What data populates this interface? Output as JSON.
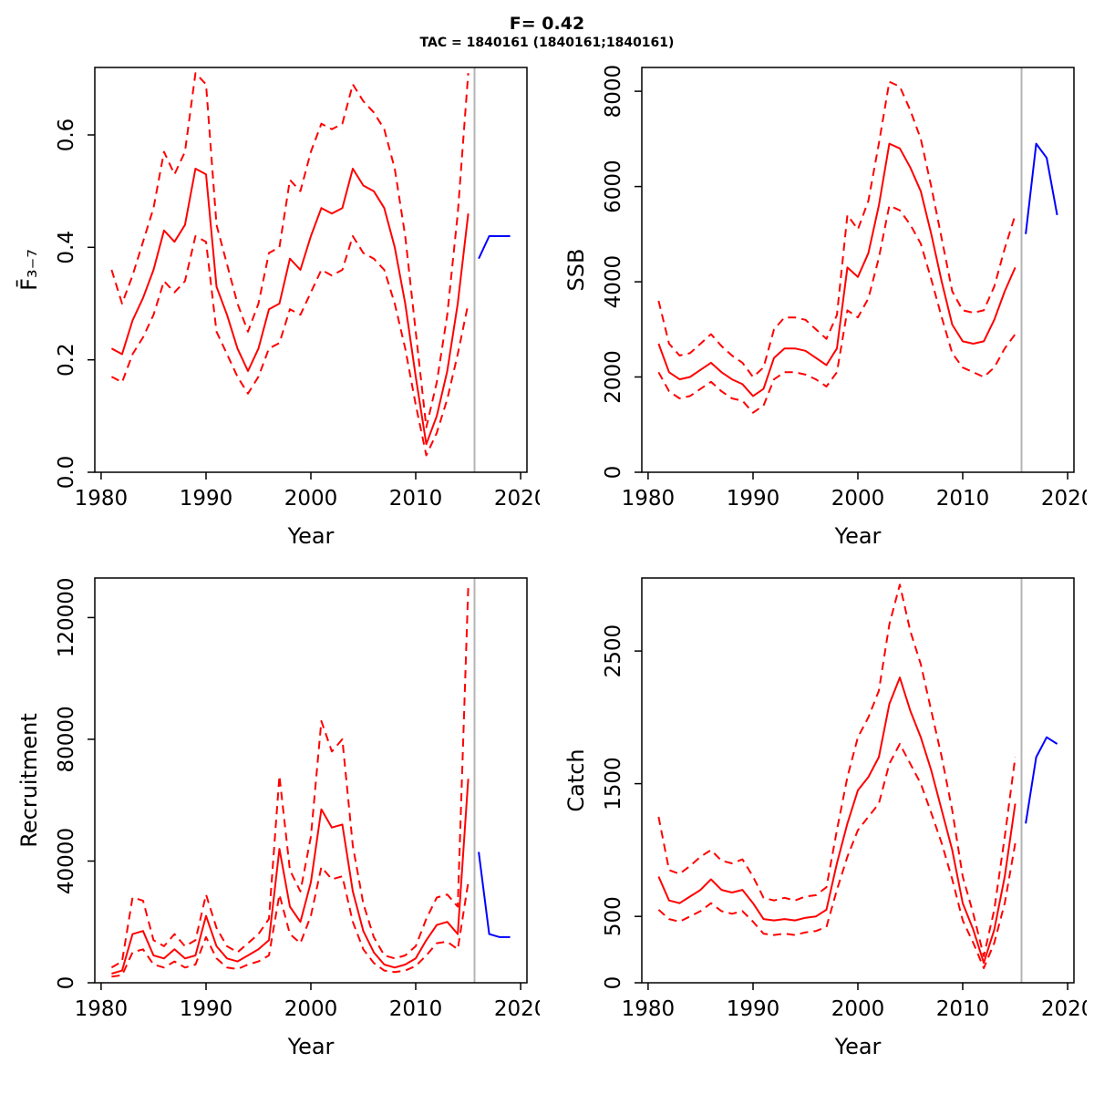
{
  "header": {
    "title": "F= 0.42",
    "subtitle": "TAC = 1840161 (1840161;1840161)"
  },
  "colors": {
    "history": "#ff0000",
    "confidence": "#ff0000",
    "forecast": "#0000ff",
    "divider": "#b4b4b4",
    "axis": "#000000"
  },
  "chart_data": [
    {
      "type": "line",
      "title": "",
      "ylabel": "F̄₃₋₇",
      "xlabel": "Year",
      "xlim": [
        1979.4,
        2020.6
      ],
      "ylim": [
        0,
        0.72
      ],
      "xticks": [
        1980,
        1990,
        2000,
        2010,
        2020
      ],
      "xtick_labels": [
        "1980",
        "1990",
        "2000",
        "2010",
        "2020"
      ],
      "yticks": [
        0,
        0.2,
        0.4,
        0.6
      ],
      "ytick_labels": [
        "0.0",
        "0.2",
        "0.4",
        "0.6"
      ],
      "divider_x": 2015.6,
      "x_hist": [
        1981,
        1982,
        1983,
        1984,
        1985,
        1986,
        1987,
        1988,
        1989,
        1990,
        1991,
        1992,
        1993,
        1994,
        1995,
        1996,
        1997,
        1998,
        1999,
        2000,
        2001,
        2002,
        2003,
        2004,
        2005,
        2006,
        2007,
        2008,
        2009,
        2010,
        2011,
        2012,
        2013,
        2014,
        2015
      ],
      "x_forecast": [
        2016,
        2017,
        2018,
        2019
      ],
      "series": [
        {
          "name": "lower-ci",
          "style": "dashed",
          "color_key": "confidence",
          "x_key": "x_hist",
          "values": [
            0.17,
            0.16,
            0.21,
            0.24,
            0.28,
            0.34,
            0.32,
            0.34,
            0.42,
            0.41,
            0.25,
            0.21,
            0.17,
            0.14,
            0.17,
            0.22,
            0.23,
            0.29,
            0.28,
            0.32,
            0.36,
            0.35,
            0.36,
            0.42,
            0.39,
            0.38,
            0.36,
            0.3,
            0.22,
            0.12,
            0.03,
            0.07,
            0.13,
            0.21,
            0.3
          ]
        },
        {
          "name": "upper-ci",
          "style": "dashed",
          "color_key": "confidence",
          "x_key": "x_hist",
          "values": [
            0.36,
            0.3,
            0.35,
            0.41,
            0.47,
            0.57,
            0.53,
            0.57,
            0.71,
            0.69,
            0.44,
            0.37,
            0.3,
            0.25,
            0.3,
            0.39,
            0.4,
            0.52,
            0.5,
            0.57,
            0.62,
            0.61,
            0.62,
            0.69,
            0.66,
            0.64,
            0.61,
            0.54,
            0.42,
            0.25,
            0.08,
            0.16,
            0.28,
            0.46,
            0.71
          ]
        },
        {
          "name": "median",
          "style": "solid",
          "color_key": "history",
          "x_key": "x_hist",
          "values": [
            0.22,
            0.21,
            0.27,
            0.31,
            0.36,
            0.43,
            0.41,
            0.44,
            0.54,
            0.53,
            0.33,
            0.28,
            0.22,
            0.18,
            0.22,
            0.29,
            0.3,
            0.38,
            0.36,
            0.42,
            0.47,
            0.46,
            0.47,
            0.54,
            0.51,
            0.5,
            0.47,
            0.4,
            0.3,
            0.17,
            0.05,
            0.1,
            0.18,
            0.3,
            0.46
          ]
        },
        {
          "name": "forecast",
          "style": "solid",
          "color_key": "forecast",
          "x_key": "x_forecast",
          "values": [
            0.38,
            0.42,
            0.42,
            0.42
          ]
        }
      ]
    },
    {
      "type": "line",
      "title": "",
      "ylabel": "SSB",
      "xlabel": "Year",
      "xlim": [
        1979.4,
        2020.6
      ],
      "ylim": [
        0,
        8500
      ],
      "xticks": [
        1980,
        1990,
        2000,
        2010,
        2020
      ],
      "xtick_labels": [
        "1980",
        "1990",
        "2000",
        "2010",
        "2020"
      ],
      "yticks": [
        0,
        2000,
        4000,
        6000,
        8000
      ],
      "ytick_labels": [
        "0",
        "2000",
        "4000",
        "6000",
        "8000"
      ],
      "divider_x": 2015.6,
      "x_hist": [
        1981,
        1982,
        1983,
        1984,
        1985,
        1986,
        1987,
        1988,
        1989,
        1990,
        1991,
        1992,
        1993,
        1994,
        1995,
        1996,
        1997,
        1998,
        1999,
        2000,
        2001,
        2002,
        2003,
        2004,
        2005,
        2006,
        2007,
        2008,
        2009,
        2010,
        2011,
        2012,
        2013,
        2014,
        2015
      ],
      "x_forecast": [
        2016,
        2017,
        2018,
        2019
      ],
      "series": [
        {
          "name": "lower-ci",
          "style": "dashed",
          "color_key": "confidence",
          "x_key": "x_hist",
          "values": [
            2100,
            1700,
            1550,
            1600,
            1750,
            1900,
            1700,
            1550,
            1500,
            1250,
            1400,
            1950,
            2100,
            2100,
            2050,
            1950,
            1800,
            2100,
            3400,
            3250,
            3650,
            4500,
            5600,
            5500,
            5200,
            4800,
            4050,
            3250,
            2500,
            2200,
            2100,
            2000,
            2200,
            2600,
            2900
          ]
        },
        {
          "name": "upper-ci",
          "style": "dashed",
          "color_key": "confidence",
          "x_key": "x_hist",
          "values": [
            3600,
            2700,
            2450,
            2500,
            2700,
            2900,
            2650,
            2450,
            2300,
            2000,
            2200,
            3000,
            3250,
            3250,
            3200,
            3000,
            2800,
            3300,
            5400,
            5100,
            5700,
            6900,
            8200,
            8100,
            7600,
            7000,
            6000,
            4900,
            3800,
            3400,
            3350,
            3400,
            3900,
            4700,
            5400
          ]
        },
        {
          "name": "median",
          "style": "solid",
          "color_key": "history",
          "x_key": "x_hist",
          "values": [
            2700,
            2100,
            1950,
            2000,
            2150,
            2300,
            2100,
            1950,
            1850,
            1600,
            1750,
            2400,
            2600,
            2600,
            2550,
            2400,
            2250,
            2600,
            4300,
            4100,
            4600,
            5600,
            6900,
            6800,
            6400,
            5900,
            5000,
            4000,
            3100,
            2750,
            2700,
            2750,
            3200,
            3800,
            4300
          ]
        },
        {
          "name": "forecast",
          "style": "solid",
          "color_key": "forecast",
          "x_key": "x_forecast",
          "values": [
            5000,
            6900,
            6600,
            5400
          ]
        }
      ]
    },
    {
      "type": "line",
      "title": "",
      "ylabel": "Recruitment",
      "xlabel": "Year",
      "xlim": [
        1979.4,
        2020.6
      ],
      "ylim": [
        0,
        133000
      ],
      "xticks": [
        1980,
        1990,
        2000,
        2010,
        2020
      ],
      "xtick_labels": [
        "1980",
        "1990",
        "2000",
        "2010",
        "2020"
      ],
      "yticks": [
        0,
        40000,
        80000,
        120000
      ],
      "ytick_labels": [
        "0",
        "40000",
        "80000",
        "120000"
      ],
      "divider_x": 2015.6,
      "x_hist": [
        1981,
        1982,
        1983,
        1984,
        1985,
        1986,
        1987,
        1988,
        1989,
        1990,
        1991,
        1992,
        1993,
        1994,
        1995,
        1996,
        1997,
        1998,
        1999,
        2000,
        2001,
        2002,
        2003,
        2004,
        2005,
        2006,
        2007,
        2008,
        2009,
        2010,
        2011,
        2012,
        2013,
        2014,
        2015
      ],
      "x_forecast": [
        2016,
        2017,
        2018,
        2019
      ],
      "series": [
        {
          "name": "lower-ci",
          "style": "dashed",
          "color_key": "confidence",
          "x_key": "x_hist",
          "values": [
            2000,
            2500,
            10000,
            11000,
            6000,
            5000,
            7000,
            5000,
            6000,
            15000,
            8000,
            5000,
            4500,
            6000,
            7000,
            9000,
            29000,
            16000,
            13000,
            22000,
            38000,
            34000,
            35000,
            20000,
            11000,
            6500,
            4000,
            3500,
            4000,
            5500,
            9000,
            13000,
            13500,
            11000,
            33000
          ]
        },
        {
          "name": "upper-ci",
          "style": "dashed",
          "color_key": "confidence",
          "x_key": "x_hist",
          "values": [
            5000,
            7000,
            28000,
            27000,
            14000,
            12000,
            16000,
            12000,
            14000,
            29000,
            18000,
            12000,
            10000,
            13000,
            16000,
            21000,
            68000,
            37000,
            30000,
            48000,
            86000,
            76000,
            80000,
            45000,
            26000,
            15000,
            9000,
            8000,
            9000,
            12000,
            21000,
            28000,
            29000,
            25000,
            130000
          ]
        },
        {
          "name": "median",
          "style": "solid",
          "color_key": "history",
          "x_key": "x_hist",
          "values": [
            3000,
            4000,
            16000,
            17000,
            9000,
            8000,
            11000,
            8000,
            9000,
            22000,
            12000,
            8000,
            7000,
            9000,
            11000,
            14000,
            44000,
            25000,
            20000,
            33000,
            57000,
            51000,
            52000,
            30000,
            17000,
            10000,
            6000,
            5000,
            6000,
            8000,
            14000,
            19000,
            20000,
            16000,
            67000
          ]
        },
        {
          "name": "forecast",
          "style": "solid",
          "color_key": "forecast",
          "x_key": "x_forecast",
          "values": [
            43000,
            16000,
            15000,
            15000
          ]
        }
      ]
    },
    {
      "type": "line",
      "title": "",
      "ylabel": "Catch",
      "xlabel": "Year",
      "xlim": [
        1979.4,
        2020.6
      ],
      "ylim": [
        0,
        3050
      ],
      "xticks": [
        1980,
        1990,
        2000,
        2010,
        2020
      ],
      "xtick_labels": [
        "1980",
        "1990",
        "2000",
        "2010",
        "2020"
      ],
      "yticks": [
        0,
        500,
        1500,
        2500
      ],
      "ytick_labels": [
        "0",
        "500",
        "1500",
        "2500"
      ],
      "divider_x": 2015.6,
      "x_hist": [
        1981,
        1982,
        1983,
        1984,
        1985,
        1986,
        1987,
        1988,
        1989,
        1990,
        1991,
        1992,
        1993,
        1994,
        1995,
        1996,
        1997,
        1998,
        1999,
        2000,
        2001,
        2002,
        2003,
        2004,
        2005,
        2006,
        2007,
        2008,
        2009,
        2010,
        2011,
        2012,
        2013,
        2014,
        2015
      ],
      "x_forecast": [
        2016,
        2017,
        2018,
        2019
      ],
      "series": [
        {
          "name": "lower-ci",
          "style": "dashed",
          "color_key": "confidence",
          "x_key": "x_hist",
          "values": [
            550,
            480,
            460,
            500,
            540,
            600,
            540,
            520,
            540,
            460,
            370,
            360,
            370,
            360,
            380,
            390,
            420,
            700,
            950,
            1150,
            1250,
            1350,
            1650,
            1800,
            1650,
            1500,
            1280,
            1050,
            780,
            470,
            300,
            110,
            300,
            600,
            1050
          ]
        },
        {
          "name": "upper-ci",
          "style": "dashed",
          "color_key": "confidence",
          "x_key": "x_hist",
          "values": [
            1250,
            850,
            820,
            880,
            950,
            1000,
            920,
            900,
            930,
            800,
            640,
            620,
            640,
            620,
            650,
            660,
            720,
            1150,
            1550,
            1850,
            2000,
            2200,
            2700,
            3000,
            2650,
            2400,
            2050,
            1700,
            1300,
            800,
            520,
            200,
            550,
            1100,
            1700
          ]
        },
        {
          "name": "median",
          "style": "solid",
          "color_key": "history",
          "x_key": "x_hist",
          "values": [
            800,
            620,
            600,
            650,
            700,
            780,
            700,
            680,
            700,
            600,
            480,
            470,
            480,
            470,
            490,
            500,
            550,
            900,
            1200,
            1450,
            1550,
            1700,
            2100,
            2300,
            2050,
            1850,
            1600,
            1300,
            1000,
            600,
            400,
            150,
            400,
            800,
            1350
          ]
        },
        {
          "name": "forecast",
          "style": "solid",
          "color_key": "forecast",
          "x_key": "x_forecast",
          "values": [
            1200,
            1700,
            1850,
            1800
          ]
        }
      ]
    }
  ]
}
